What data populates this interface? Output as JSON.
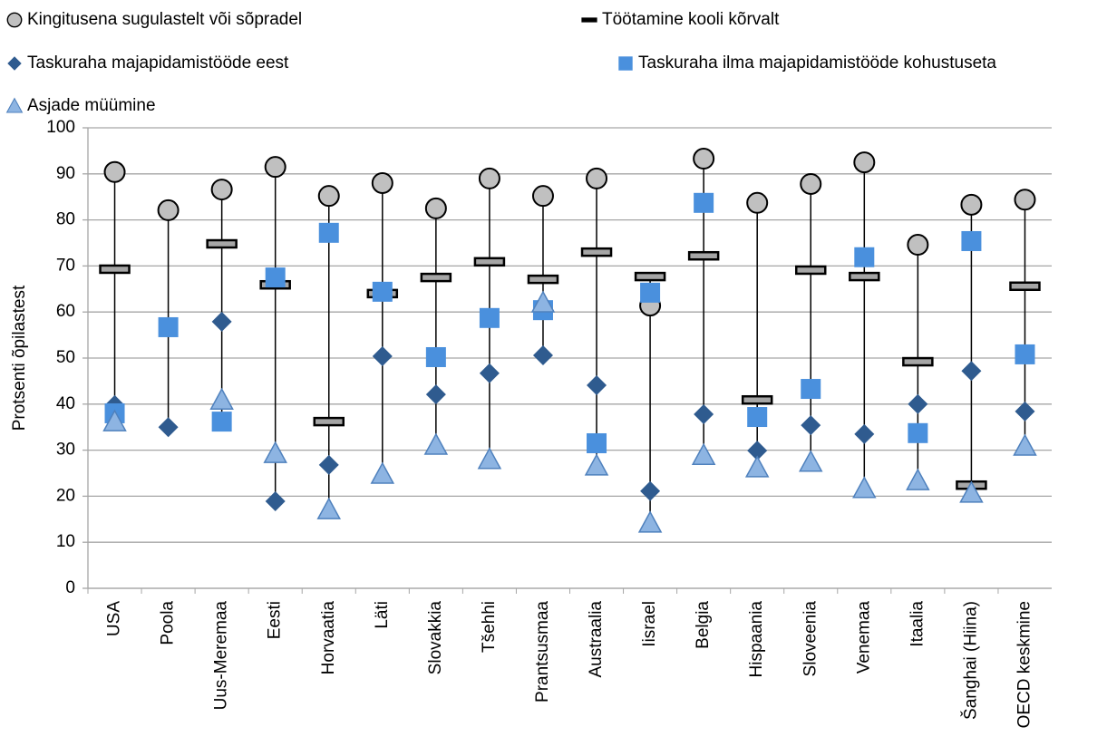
{
  "chart_data": {
    "type": "high-low",
    "y_label": "Protsenti õpilastest",
    "categories": [
      "USA",
      "Poola",
      "Uus-Meremaa",
      "Eesti",
      "Horvaatia",
      "Läti",
      "Slovakkia",
      "Tšehhi",
      "Prantsusmaa",
      "Austraalia",
      "Iisrael",
      "Belgia",
      "Hispaania",
      "Sloveenia",
      "Venemaa",
      "Itaalia",
      "Šanghai (Hiina)",
      "OECD keskmine"
    ],
    "ylim": [
      0,
      100
    ],
    "yticks": [
      0,
      10,
      20,
      30,
      40,
      50,
      60,
      70,
      80,
      90,
      100
    ],
    "grid": true,
    "series": [
      {
        "name": "Kingitusena sugulastelt või sõpradel",
        "marker": "circle",
        "color": "#c0c0c0",
        "values": [
          90.4,
          82.1,
          86.6,
          91.5,
          85.2,
          88,
          82.5,
          89,
          85.2,
          89,
          61.4,
          93.3,
          83.7,
          87.8,
          92.5,
          74.6,
          83.3,
          84.4
        ]
      },
      {
        "name": "Töötamine kooli kõrvalt",
        "marker": "dash",
        "color": "#a6a6a6",
        "values": [
          69.3,
          null,
          74.8,
          65.9,
          36.2,
          64,
          67.5,
          70.9,
          67.1,
          73,
          67.7,
          72.2,
          40.9,
          69.1,
          67.7,
          49.2,
          22.4,
          65.6
        ]
      },
      {
        "name": "Taskuraha majapidamistööde eest",
        "marker": "diamond",
        "color": "#2f5b8f",
        "values": [
          39.8,
          35,
          57.9,
          18.9,
          26.8,
          50.4,
          42.1,
          46.7,
          50.6,
          44.1,
          21.1,
          37.8,
          29.9,
          35.4,
          33.5,
          40,
          47.2,
          38.4
        ]
      },
      {
        "name": "Taskuraha ilma majapidamistööde kohustuseta",
        "marker": "square",
        "color": "#4a90dd",
        "values": [
          38,
          56.7,
          36.2,
          67.5,
          77.2,
          64.4,
          50.2,
          58.7,
          60.4,
          31.5,
          64.2,
          83.7,
          37.2,
          43.3,
          71.9,
          33.7,
          75.4,
          50.8
        ]
      },
      {
        "name": "Asjade müümine",
        "marker": "triangle",
        "color": "#8db4e2",
        "values": [
          36.2,
          null,
          40.9,
          29.3,
          17.1,
          24.8,
          31.1,
          28,
          62,
          26.6,
          14.2,
          28.9,
          26.2,
          27.4,
          21.7,
          23.4,
          20.7,
          30.9
        ]
      }
    ]
  }
}
